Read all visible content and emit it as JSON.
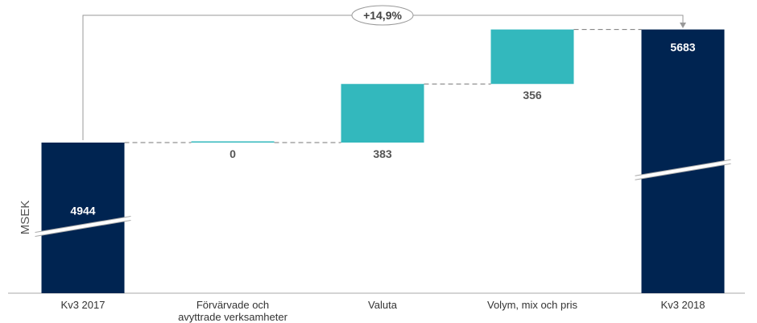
{
  "chart_data": {
    "type": "bar",
    "subtype": "waterfall",
    "ylabel": "MSEK",
    "axis_break": true,
    "categories": [
      [
        "Kv3 2017"
      ],
      [
        "Förvärvade och",
        "avyttrade verksamheter"
      ],
      [
        "Valuta"
      ],
      [
        "Volym, mix och pris"
      ],
      [
        "Kv3 2018"
      ]
    ],
    "bars": [
      {
        "kind": "total",
        "value": 4944,
        "label": "4944"
      },
      {
        "kind": "delta",
        "value": 0,
        "label": "0"
      },
      {
        "kind": "delta",
        "value": 383,
        "label": "383"
      },
      {
        "kind": "delta",
        "value": 356,
        "label": "356"
      },
      {
        "kind": "total",
        "value": 5683,
        "label": "5683"
      }
    ],
    "growth_annotation": "+14,9%",
    "colors": {
      "total": "#002451",
      "delta": "#33b8bd",
      "connector": "#777777",
      "axis": "#aaaaaa"
    }
  }
}
